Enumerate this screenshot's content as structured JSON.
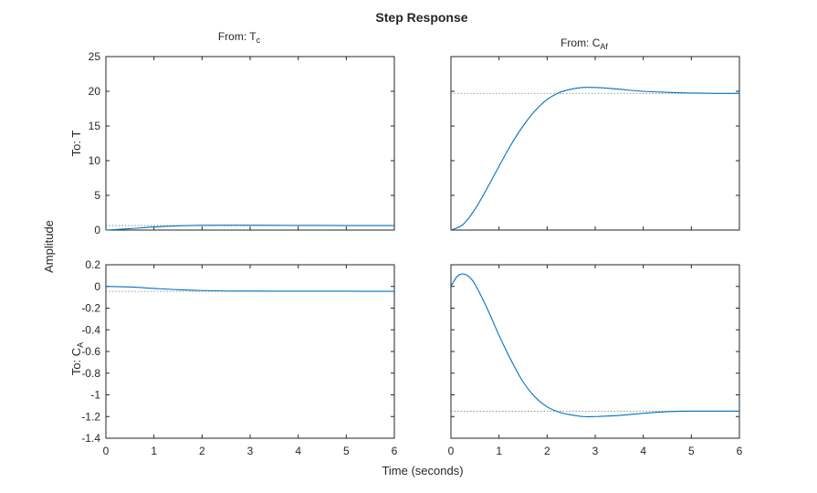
{
  "chart_data": {
    "type": "line",
    "title": "Step Response",
    "xlabel": "Time (seconds)",
    "ylabel": "Amplitude",
    "xlim": [
      0,
      6
    ],
    "xticks": [
      0,
      1,
      2,
      3,
      4,
      5,
      6
    ],
    "inputs": [
      {
        "prefix": "From:  ",
        "base": "T",
        "sub": "c"
      },
      {
        "prefix": "From:  ",
        "base": "C",
        "sub": "Af"
      }
    ],
    "outputs": [
      {
        "prefix": "To: ",
        "base": "T",
        "sub": "",
        "ylim": [
          0,
          25
        ],
        "yticks": [
          0,
          5,
          10,
          15,
          20,
          25
        ]
      },
      {
        "prefix": "To:  ",
        "base": "C",
        "sub": "A",
        "ylim": [
          -1.4,
          0.2
        ],
        "yticks": [
          0.2,
          0,
          -0.2,
          -0.4,
          -0.6,
          -0.8,
          -1,
          -1.2,
          -1.4
        ]
      }
    ],
    "series": [
      {
        "name": "Tc to T",
        "row": 0,
        "col": 0,
        "steady_state": 0.65,
        "x": [
          0,
          0.5,
          1,
          1.5,
          2,
          2.5,
          3,
          3.5,
          4,
          4.5,
          5,
          5.5,
          6
        ],
        "y": [
          0,
          0.2,
          0.45,
          0.6,
          0.68,
          0.7,
          0.7,
          0.68,
          0.67,
          0.66,
          0.65,
          0.65,
          0.65
        ]
      },
      {
        "name": "CAf to T",
        "row": 0,
        "col": 1,
        "steady_state": 19.7,
        "x": [
          0,
          0.25,
          0.5,
          0.75,
          1,
          1.25,
          1.5,
          1.75,
          2,
          2.25,
          2.5,
          2.75,
          3,
          3.25,
          3.5,
          4,
          4.5,
          5,
          5.5,
          6
        ],
        "y": [
          0,
          0.8,
          3.0,
          6.0,
          9.2,
          12.3,
          15.0,
          17.2,
          18.8,
          19.8,
          20.3,
          20.55,
          20.55,
          20.45,
          20.3,
          20.0,
          19.85,
          19.75,
          19.7,
          19.7
        ]
      },
      {
        "name": "Tc to CA",
        "row": 1,
        "col": 0,
        "steady_state": -0.045,
        "x": [
          0,
          0.5,
          1,
          1.5,
          2,
          2.5,
          3,
          3.5,
          4,
          4.5,
          5,
          5.5,
          6
        ],
        "y": [
          0,
          -0.005,
          -0.018,
          -0.03,
          -0.038,
          -0.042,
          -0.043,
          -0.044,
          -0.044,
          -0.044,
          -0.044,
          -0.045,
          -0.045
        ]
      },
      {
        "name": "CAf to CA",
        "row": 1,
        "col": 1,
        "steady_state": -1.15,
        "x": [
          0,
          0.125,
          0.25,
          0.375,
          0.5,
          0.75,
          1,
          1.25,
          1.5,
          1.75,
          2,
          2.25,
          2.5,
          2.75,
          3,
          3.25,
          3.5,
          4,
          4.5,
          5,
          5.5,
          6
        ],
        "y": [
          0,
          0.09,
          0.115,
          0.09,
          0.02,
          -0.2,
          -0.45,
          -0.68,
          -0.88,
          -1.02,
          -1.11,
          -1.16,
          -1.185,
          -1.2,
          -1.2,
          -1.195,
          -1.19,
          -1.17,
          -1.155,
          -1.15,
          -1.15,
          -1.15
        ]
      }
    ]
  }
}
